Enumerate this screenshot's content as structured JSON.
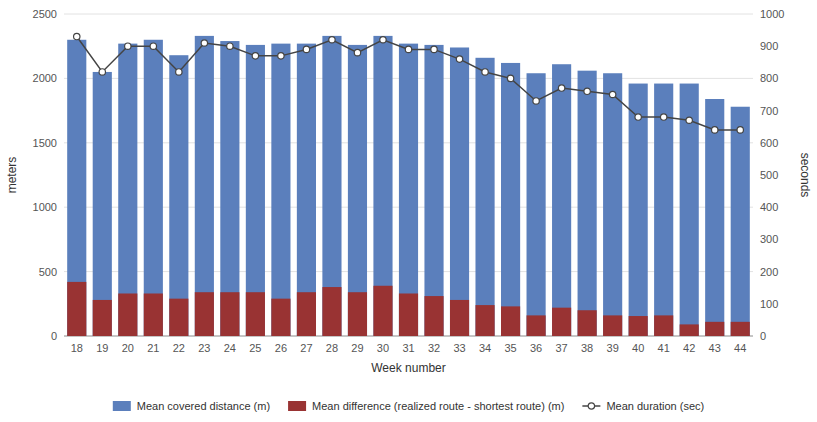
{
  "chart_data": {
    "type": "bar",
    "x_label": "Week number",
    "y_label": "meters",
    "y2_label": "seconds",
    "categories": [
      "18",
      "19",
      "20",
      "21",
      "22",
      "23",
      "24",
      "25",
      "26",
      "27",
      "28",
      "29",
      "30",
      "31",
      "32",
      "33",
      "34",
      "35",
      "36",
      "37",
      "38",
      "39",
      "40",
      "41",
      "42",
      "43",
      "44"
    ],
    "series": [
      {
        "name": "Mean covered distance (m)",
        "type": "bar",
        "color": "#5b7fbc",
        "values": [
          2300,
          2050,
          2270,
          2300,
          2180,
          2330,
          2290,
          2260,
          2270,
          2270,
          2330,
          2260,
          2330,
          2270,
          2260,
          2240,
          2160,
          2120,
          2040,
          2110,
          2060,
          2040,
          1960,
          1960,
          1960,
          1840,
          1780
        ]
      },
      {
        "name": "Mean difference (realized route - shortest route) (m)",
        "type": "bar",
        "color": "#993333",
        "values": [
          420,
          280,
          330,
          330,
          290,
          340,
          340,
          340,
          290,
          340,
          380,
          340,
          390,
          330,
          310,
          280,
          240,
          230,
          160,
          220,
          200,
          160,
          155,
          160,
          90,
          110,
          110
        ]
      },
      {
        "name": "Mean duration (sec)",
        "type": "line",
        "axis": "y2",
        "color": "#444444",
        "marker": "circle",
        "values": [
          930,
          820,
          900,
          900,
          820,
          910,
          900,
          870,
          870,
          890,
          920,
          880,
          920,
          890,
          890,
          860,
          820,
          800,
          730,
          770,
          760,
          750,
          680,
          680,
          670,
          640,
          640
        ]
      }
    ],
    "ylim": [
      0,
      2500
    ],
    "yticks": [
      0,
      500,
      1000,
      1500,
      2000,
      2500
    ],
    "y2lim": [
      0,
      1000
    ],
    "y2ticks": [
      0,
      100,
      200,
      300,
      400,
      500,
      600,
      700,
      800,
      900,
      1000
    ],
    "stacked": false,
    "grid": true,
    "legend": "bottom"
  }
}
